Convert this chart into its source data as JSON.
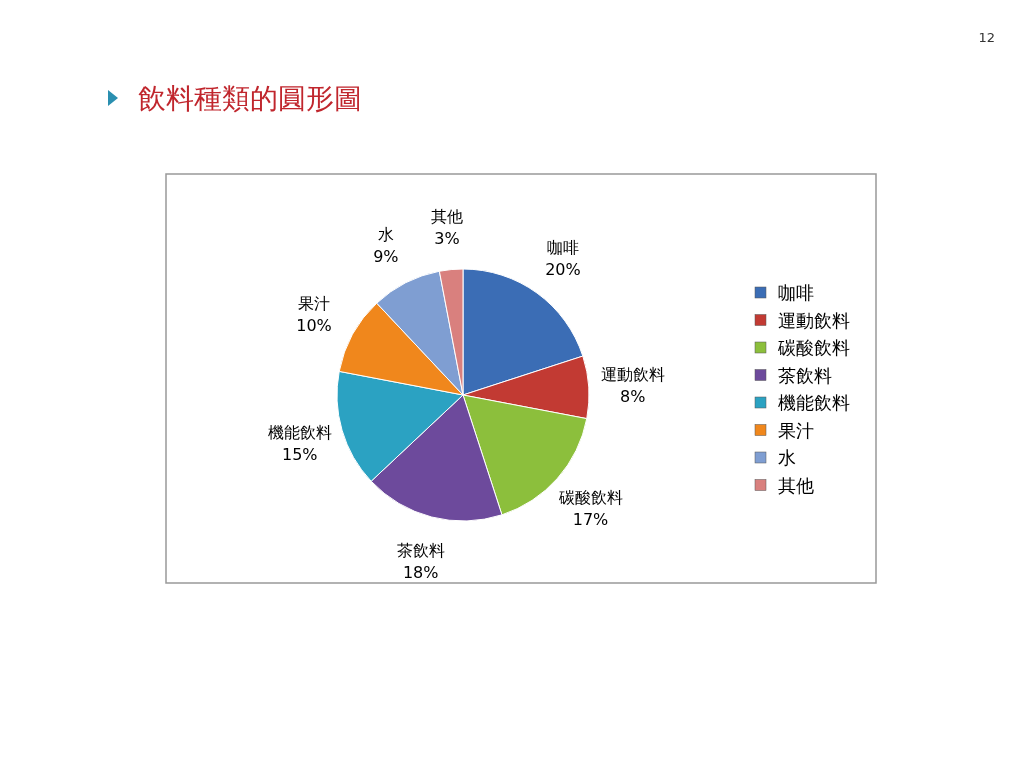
{
  "chart_data": {
    "type": "pie",
    "title": "飲料種類的圓形圖",
    "categories": [
      "咖啡",
      "運動飲料",
      "碳酸飲料",
      "茶飲料",
      "機能飲料",
      "果汁",
      "水",
      "其他"
    ],
    "values": [
      20,
      8,
      17,
      18,
      15,
      10,
      9,
      3
    ],
    "colors": [
      "#3b6db5",
      "#c23a33",
      "#8cbf3c",
      "#6d4a9c",
      "#2ba2c2",
      "#f0871c",
      "#7f9ed2",
      "#d9807e"
    ],
    "value_labels": [
      "20%",
      "8%",
      "17%",
      "18%",
      "15%",
      "10%",
      "9%",
      "3%"
    ],
    "legend": "right",
    "annotations": [
      "12"
    ]
  }
}
